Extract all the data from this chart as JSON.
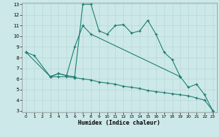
{
  "xlabel": "Humidex (Indice chaleur)",
  "x": [
    0,
    1,
    2,
    3,
    4,
    5,
    6,
    7,
    8,
    9,
    10,
    11,
    12,
    13,
    14,
    15,
    16,
    17,
    18,
    19,
    20,
    21,
    22,
    23
  ],
  "line1_x": [
    0,
    1,
    3,
    4,
    5,
    6,
    7,
    8,
    9,
    10,
    11,
    12,
    13,
    14,
    15,
    16,
    17,
    18,
    19
  ],
  "line1_y": [
    8.5,
    8.2,
    6.2,
    6.5,
    6.3,
    6.2,
    13.0,
    13.0,
    10.5,
    10.2,
    11.0,
    11.1,
    10.3,
    10.5,
    11.5,
    10.2,
    8.5,
    7.8,
    6.2
  ],
  "line2_x": [
    0,
    3,
    4,
    5,
    6,
    7,
    8,
    19,
    20,
    21,
    22,
    23
  ],
  "line2_y": [
    8.5,
    6.2,
    6.5,
    6.3,
    9.0,
    11.0,
    10.2,
    6.2,
    5.2,
    5.5,
    4.5,
    3.0
  ],
  "line3_x": [
    3,
    4,
    5,
    6,
    7,
    8,
    9,
    10,
    11,
    12,
    13,
    14,
    15,
    16,
    17,
    18,
    19,
    20,
    21,
    22,
    23
  ],
  "line3_y": [
    6.2,
    6.2,
    6.2,
    6.1,
    6.0,
    5.9,
    5.7,
    5.6,
    5.5,
    5.3,
    5.2,
    5.1,
    4.9,
    4.8,
    4.7,
    4.6,
    4.5,
    4.4,
    4.2,
    4.0,
    3.0
  ],
  "color": "#1a7a6e",
  "bg_color": "#cce8e8",
  "grid_color": "#b8d8d8",
  "ylim": [
    3,
    13
  ],
  "xlim": [
    -0.5,
    23.5
  ],
  "yticks": [
    3,
    4,
    5,
    6,
    7,
    8,
    9,
    10,
    11,
    12,
    13
  ],
  "xticks": [
    0,
    1,
    2,
    3,
    4,
    5,
    6,
    7,
    8,
    9,
    10,
    11,
    12,
    13,
    14,
    15,
    16,
    17,
    18,
    19,
    20,
    21,
    22,
    23
  ]
}
